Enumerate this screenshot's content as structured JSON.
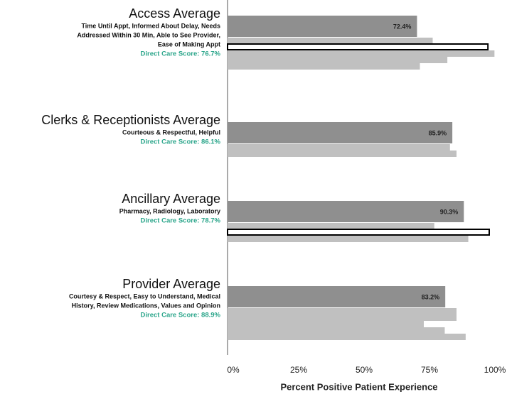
{
  "chart_data": {
    "type": "bar",
    "orientation": "horizontal",
    "xlabel": "Percent Positive Patient Experience",
    "xlim": [
      0,
      105
    ],
    "xticks": [
      {
        "value": 0,
        "label": "0%"
      },
      {
        "value": 25,
        "label": "25%"
      },
      {
        "value": 50,
        "label": "50%"
      },
      {
        "value": 75,
        "label": "75%"
      },
      {
        "value": 100,
        "label": "100%"
      }
    ],
    "average_color": "#8f8f8f",
    "item_color": "#c0c0c0",
    "highlight_fill": "#ffffff",
    "highlight_stroke": "#000000",
    "score_color": "#2aa58a",
    "groups": [
      {
        "title": "Access Average",
        "description": [
          "Time Until Appt, Informed About Delay, Needs",
          "Addressed Within 30 Min, Able to See Provider,",
          "Ease of Making Appt"
        ],
        "score": "Direct Care Score: 76.7%",
        "average": 72.4,
        "average_label": "72.4%",
        "items": [
          78.4,
          99.5,
          102,
          84,
          73.5
        ],
        "highlight": [
          false,
          true,
          false,
          false,
          false
        ]
      },
      {
        "title": "Clerks & Receptionists Average",
        "description": [
          "Courteous & Respectful, Helpful"
        ],
        "score": "Direct Care Score: 86.1%",
        "average": 85.9,
        "average_label": "85.9%",
        "items": [
          85,
          87.5
        ],
        "highlight": [
          false,
          false
        ]
      },
      {
        "title": "Ancillary Average",
        "description": [
          "Pharmacy, Radiology, Laboratory"
        ],
        "score": "Direct Care Score: 78.7%",
        "average": 90.3,
        "average_label": "90.3%",
        "items": [
          79,
          100,
          92
        ],
        "highlight": [
          false,
          true,
          false
        ]
      },
      {
        "title": "Provider Average",
        "description": [
          "Courtesy & Respect, Easy to Understand, Medical",
          "History, Review Medications, Values and Opinion"
        ],
        "score": "Direct Care Score: 88.9%",
        "average": 83.2,
        "average_label": "83.2%",
        "items": [
          87.5,
          87.5,
          75,
          83,
          91
        ],
        "highlight": [
          false,
          false,
          false,
          false,
          false
        ]
      }
    ]
  }
}
